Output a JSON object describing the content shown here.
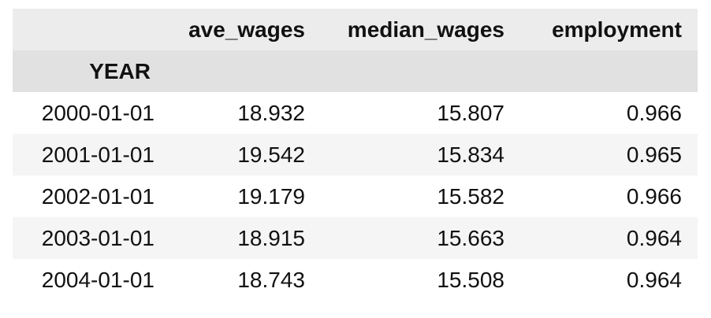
{
  "dataframe": {
    "columns": [
      "ave_wages",
      "median_wages",
      "employment"
    ],
    "index_name": "YEAR",
    "rows": [
      {
        "index": "2000-01-01",
        "values": [
          "18.932",
          "15.807",
          "0.966"
        ]
      },
      {
        "index": "2001-01-01",
        "values": [
          "19.542",
          "15.834",
          "0.965"
        ]
      },
      {
        "index": "2002-01-01",
        "values": [
          "19.179",
          "15.582",
          "0.966"
        ]
      },
      {
        "index": "2003-01-01",
        "values": [
          "18.915",
          "15.663",
          "0.964"
        ]
      },
      {
        "index": "2004-01-01",
        "values": [
          "18.743",
          "15.508",
          "0.964"
        ]
      }
    ]
  }
}
